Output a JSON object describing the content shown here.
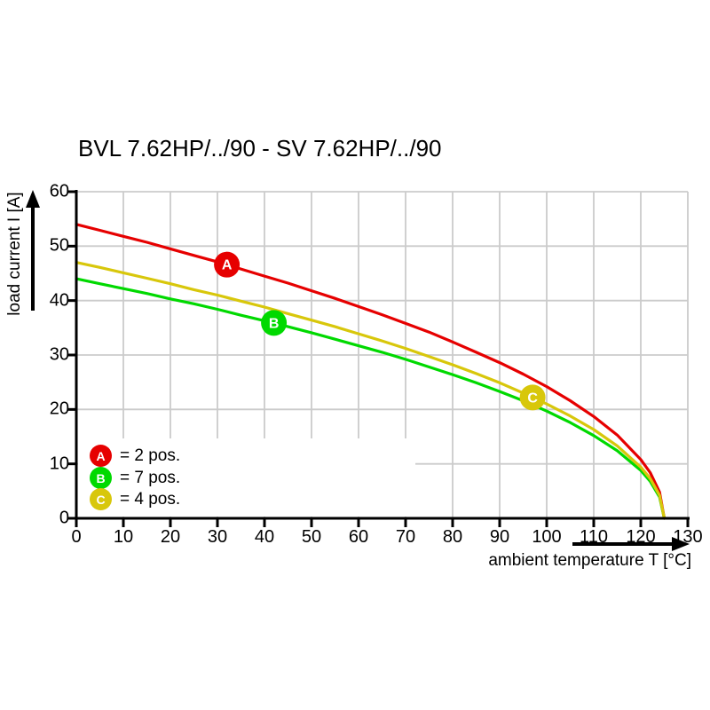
{
  "chart_data": {
    "type": "line",
    "title": "BVL 7.62HP/../90 - SV 7.62HP/../90",
    "xlabel": "ambient temperature T [°C]",
    "ylabel": "load current I [A]",
    "xlim": [
      0,
      130
    ],
    "ylim": [
      0,
      60
    ],
    "x_ticks": [
      0,
      10,
      20,
      30,
      40,
      50,
      60,
      70,
      80,
      90,
      100,
      110,
      120,
      130
    ],
    "y_ticks": [
      0,
      10,
      20,
      30,
      40,
      50,
      60
    ],
    "grid": true,
    "legend_position": "bottom-left",
    "series": [
      {
        "name": "A",
        "legend_label": "= 2 pos.",
        "color": "#e60000",
        "marker": {
          "t": 32,
          "i": 46.6
        },
        "points": [
          [
            0,
            54.0
          ],
          [
            5,
            52.9
          ],
          [
            10,
            51.8
          ],
          [
            15,
            50.7
          ],
          [
            20,
            49.5
          ],
          [
            25,
            48.3
          ],
          [
            30,
            47.1
          ],
          [
            35,
            45.8
          ],
          [
            40,
            44.5
          ],
          [
            45,
            43.2
          ],
          [
            50,
            41.8
          ],
          [
            55,
            40.4
          ],
          [
            60,
            38.9
          ],
          [
            65,
            37.4
          ],
          [
            70,
            35.8
          ],
          [
            75,
            34.2
          ],
          [
            80,
            32.4
          ],
          [
            85,
            30.5
          ],
          [
            90,
            28.6
          ],
          [
            95,
            26.5
          ],
          [
            100,
            24.2
          ],
          [
            105,
            21.6
          ],
          [
            110,
            18.7
          ],
          [
            115,
            15.3
          ],
          [
            120,
            10.8
          ],
          [
            122,
            8.4
          ],
          [
            124,
            4.8
          ],
          [
            125,
            0
          ]
        ]
      },
      {
        "name": "B",
        "legend_label": "= 7 pos.",
        "color": "#00d900",
        "marker": {
          "t": 42,
          "i": 35.9
        },
        "points": [
          [
            0,
            44.0
          ],
          [
            5,
            43.1
          ],
          [
            10,
            42.2
          ],
          [
            15,
            41.3
          ],
          [
            20,
            40.3
          ],
          [
            25,
            39.4
          ],
          [
            30,
            38.4
          ],
          [
            35,
            37.3
          ],
          [
            40,
            36.3
          ],
          [
            45,
            35.2
          ],
          [
            50,
            34.1
          ],
          [
            55,
            32.9
          ],
          [
            60,
            31.7
          ],
          [
            65,
            30.5
          ],
          [
            70,
            29.2
          ],
          [
            75,
            27.8
          ],
          [
            80,
            26.4
          ],
          [
            85,
            24.9
          ],
          [
            90,
            23.3
          ],
          [
            95,
            21.6
          ],
          [
            100,
            19.7
          ],
          [
            105,
            17.6
          ],
          [
            110,
            15.2
          ],
          [
            115,
            12.4
          ],
          [
            120,
            8.8
          ],
          [
            122,
            6.8
          ],
          [
            124,
            3.9
          ],
          [
            125,
            0
          ]
        ]
      },
      {
        "name": "C",
        "legend_label": "= 4 pos.",
        "color": "#d8c70b",
        "marker": {
          "t": 97,
          "i": 22.2
        },
        "points": [
          [
            0,
            47.0
          ],
          [
            5,
            46.1
          ],
          [
            10,
            45.1
          ],
          [
            15,
            44.1
          ],
          [
            20,
            43.1
          ],
          [
            25,
            42.0
          ],
          [
            30,
            41.0
          ],
          [
            35,
            39.9
          ],
          [
            40,
            38.8
          ],
          [
            45,
            37.6
          ],
          [
            50,
            36.4
          ],
          [
            55,
            35.2
          ],
          [
            60,
            33.9
          ],
          [
            65,
            32.6
          ],
          [
            70,
            31.2
          ],
          [
            75,
            29.7
          ],
          [
            80,
            28.2
          ],
          [
            85,
            26.6
          ],
          [
            90,
            24.9
          ],
          [
            95,
            23.0
          ],
          [
            100,
            21.0
          ],
          [
            105,
            18.8
          ],
          [
            110,
            16.3
          ],
          [
            115,
            13.3
          ],
          [
            120,
            9.4
          ],
          [
            122,
            7.3
          ],
          [
            124,
            4.2
          ],
          [
            125,
            0
          ]
        ]
      }
    ]
  },
  "colors": {
    "grid": "#cbcbcb",
    "axis": "#000000",
    "background": "#ffffff",
    "marker_letter": "#ffffff"
  }
}
